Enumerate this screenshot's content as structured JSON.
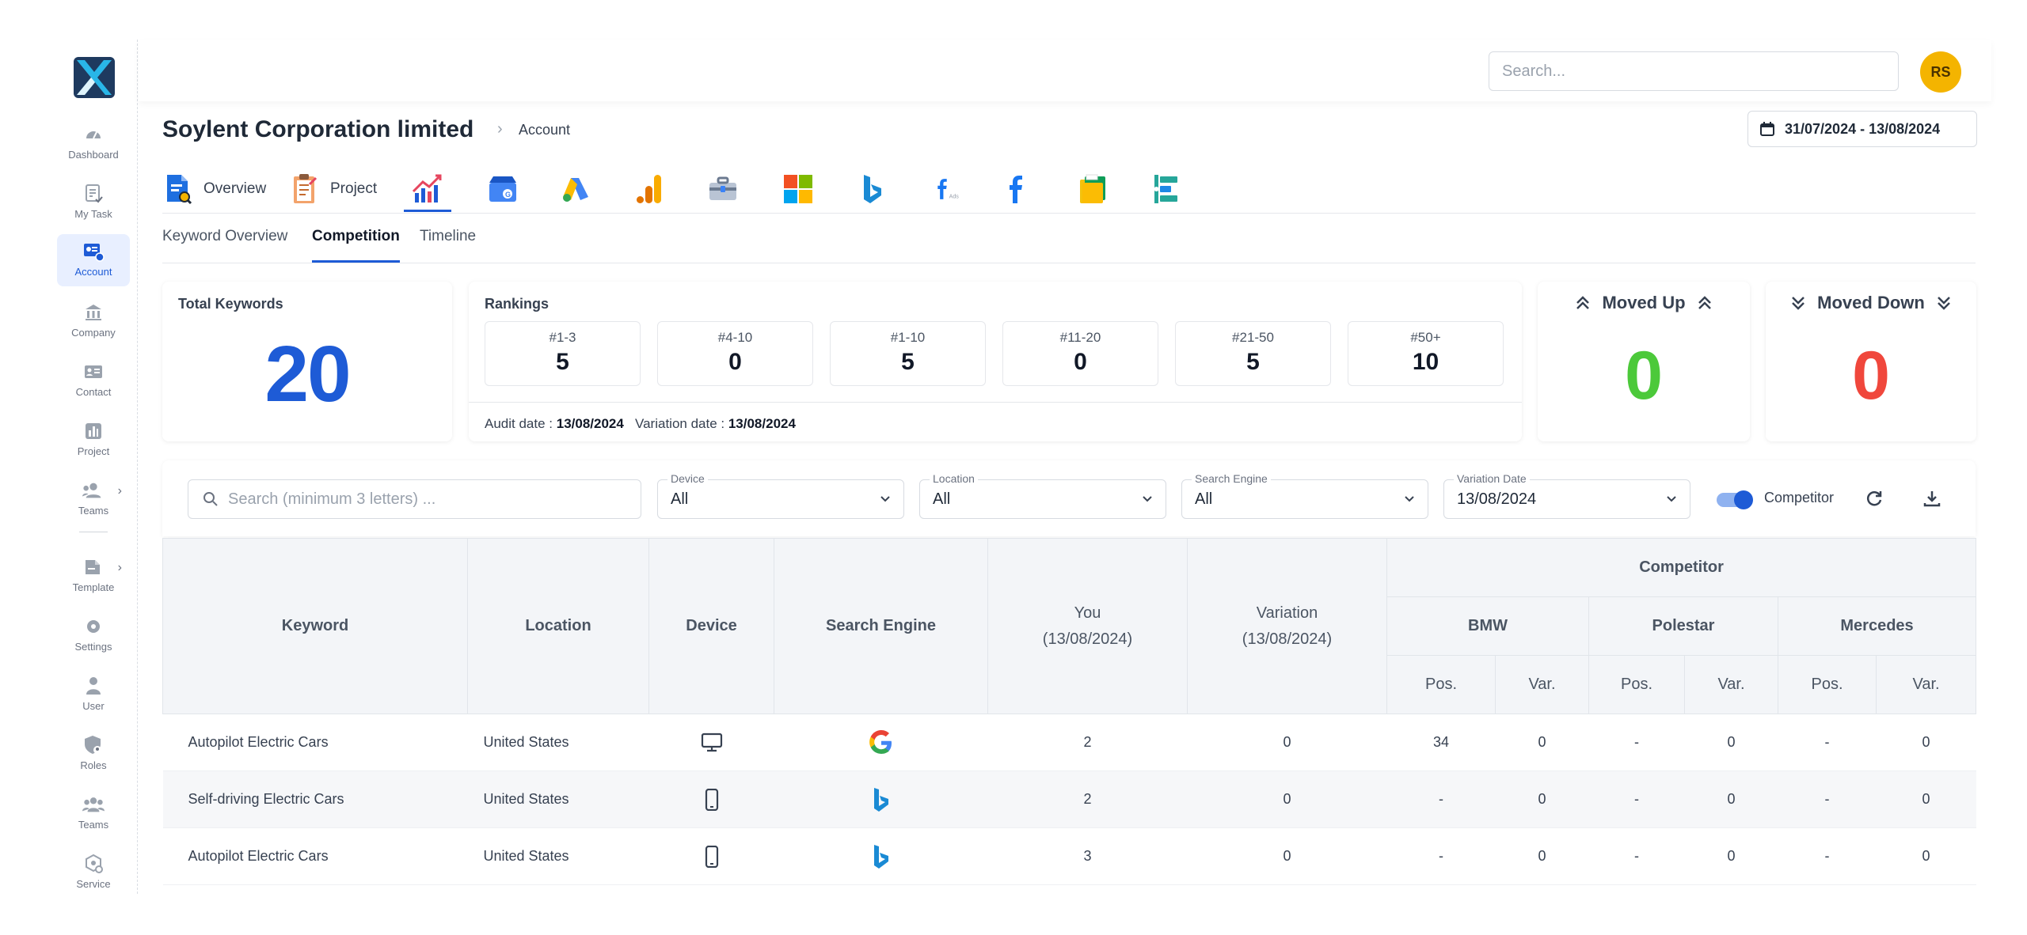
{
  "app": {
    "logo": "x-logo"
  },
  "sidebar": {
    "items": [
      {
        "label": "Dashboard",
        "icon": "gauge-icon"
      },
      {
        "label": "My Task",
        "icon": "task-icon"
      },
      {
        "label": "Account",
        "icon": "account-icon",
        "active": true
      },
      {
        "label": "Company",
        "icon": "bank-icon"
      },
      {
        "label": "Contact",
        "icon": "contact-card-icon"
      },
      {
        "label": "Project",
        "icon": "project-chart-icon"
      },
      {
        "label": "Teams",
        "icon": "teams-icon"
      },
      {
        "label": "Template",
        "icon": "template-icon"
      },
      {
        "label": "Settings",
        "icon": "gear-icon"
      },
      {
        "label": "User",
        "icon": "user-icon"
      },
      {
        "label": "Roles",
        "icon": "shield-user-icon"
      },
      {
        "label": "Teams",
        "icon": "group-icon"
      },
      {
        "label": "Service",
        "icon": "service-icon"
      }
    ]
  },
  "topbar": {
    "search_placeholder": "Search...",
    "avatar_initials": "RS"
  },
  "header": {
    "title": "Soylent Corporation limited",
    "breadcrumb_sep": "›",
    "breadcrumb": "Account",
    "date_range": "31/07/2024 - 13/08/2024"
  },
  "module_tabs": [
    {
      "label": "Overview",
      "icon": "overview-doc-icon"
    },
    {
      "label": "Project",
      "icon": "project-clipboard-icon"
    },
    {
      "label": "",
      "icon": "rank-growth-icon",
      "active": true
    },
    {
      "label": "",
      "icon": "google-business-icon"
    },
    {
      "label": "",
      "icon": "google-ads-icon"
    },
    {
      "label": "",
      "icon": "google-analytics-icon"
    },
    {
      "label": "",
      "icon": "toolbox-icon"
    },
    {
      "label": "",
      "icon": "microsoft-icon"
    },
    {
      "label": "",
      "icon": "bing-icon"
    },
    {
      "label": "",
      "icon": "facebook-ads-icon"
    },
    {
      "label": "",
      "icon": "facebook-icon"
    },
    {
      "label": "",
      "icon": "folders-icon"
    },
    {
      "label": "",
      "icon": "tag-manager-icon"
    }
  ],
  "facebook_ads_suffix": "Ads",
  "sub_tabs": [
    {
      "label": "Keyword Overview"
    },
    {
      "label": "Competition",
      "active": true
    },
    {
      "label": "Timeline"
    }
  ],
  "total_keywords": {
    "title": "Total Keywords",
    "value": "20"
  },
  "rankings": {
    "title": "Rankings",
    "buckets": [
      {
        "label": "#1-3",
        "value": "5"
      },
      {
        "label": "#4-10",
        "value": "0"
      },
      {
        "label": "#1-10",
        "value": "5"
      },
      {
        "label": "#11-20",
        "value": "0"
      },
      {
        "label": "#21-50",
        "value": "5"
      },
      {
        "label": "#50+",
        "value": "10"
      }
    ],
    "audit_label": "Audit date :",
    "audit_date": "13/08/2024",
    "variation_label": "Variation date :",
    "variation_date": "13/08/2024"
  },
  "moved_up": {
    "title": "Moved Up",
    "value": "0",
    "color": "#4cc93a"
  },
  "moved_down": {
    "title": "Moved Down",
    "value": "0",
    "color": "#f0473c"
  },
  "filters": {
    "search_placeholder": "Search (minimum 3 letters) ...",
    "device": {
      "label": "Device",
      "value": "All"
    },
    "location": {
      "label": "Location",
      "value": "All"
    },
    "search_engine": {
      "label": "Search Engine",
      "value": "All"
    },
    "variation_date": {
      "label": "Variation Date",
      "value": "13/08/2024"
    },
    "competitor_toggle": {
      "label": "Competitor",
      "on": true
    }
  },
  "table": {
    "headers": {
      "keyword": "Keyword",
      "location": "Location",
      "device": "Device",
      "search_engine": "Search Engine",
      "you": "You",
      "you_date": "(13/08/2024)",
      "variation": "Variation",
      "variation_date": "(13/08/2024)",
      "competitor": "Competitor",
      "competitors": [
        "BMW",
        "Polestar",
        "Mercedes"
      ],
      "pos": "Pos.",
      "var": "Var."
    },
    "rows": [
      {
        "keyword": "Autopilot Electric Cars",
        "location": "United States",
        "device": "desktop-icon",
        "engine": "google-icon",
        "you": "2",
        "variation": "0",
        "bmw_pos": "34",
        "bmw_var": "0",
        "pol_pos": "-",
        "pol_var": "0",
        "mer_pos": "-",
        "mer_var": "0"
      },
      {
        "keyword": "Self-driving Electric Cars",
        "location": "United States",
        "device": "mobile-icon",
        "engine": "bing-icon",
        "you": "2",
        "variation": "0",
        "bmw_pos": "-",
        "bmw_var": "0",
        "pol_pos": "-",
        "pol_var": "0",
        "mer_pos": "-",
        "mer_var": "0"
      },
      {
        "keyword": "Autopilot Electric Cars",
        "location": "United States",
        "device": "mobile-icon",
        "engine": "bing-icon",
        "you": "3",
        "variation": "0",
        "bmw_pos": "-",
        "bmw_var": "0",
        "pol_pos": "-",
        "pol_var": "0",
        "mer_pos": "-",
        "mer_var": "0"
      }
    ]
  },
  "colors": {
    "accent": "#1e5bd6",
    "total_keywords": "#1e5bd6",
    "avatar": "#f4b400"
  }
}
